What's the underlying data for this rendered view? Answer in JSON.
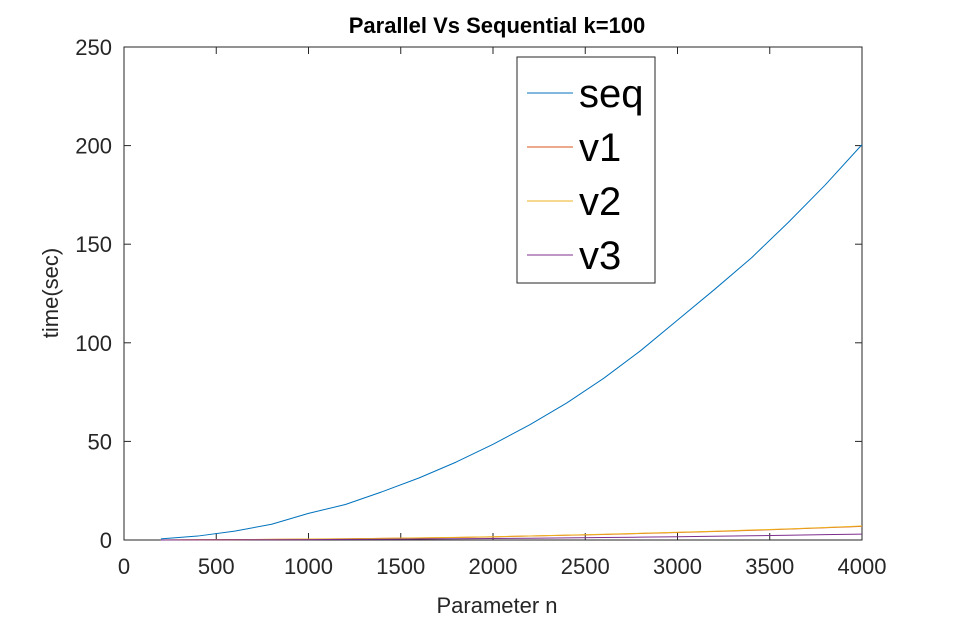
{
  "chart_data": {
    "type": "line",
    "title": "Parallel Vs Sequential k=100",
    "xlabel": "Parameter n",
    "ylabel": "time(sec)",
    "xlim": [
      0,
      4000
    ],
    "ylim": [
      0,
      250
    ],
    "xticks": [
      0,
      500,
      1000,
      1500,
      2000,
      2500,
      3000,
      3500,
      4000
    ],
    "yticks": [
      0,
      50,
      100,
      150,
      200,
      250
    ],
    "grid": false,
    "legend_position": "top-right",
    "series": [
      {
        "name": "seq",
        "color": "#0072BD",
        "x": [
          200,
          400,
          600,
          800,
          1000,
          1200,
          1400,
          1600,
          1800,
          2000,
          2200,
          2400,
          2600,
          2800,
          3000,
          3200,
          3400,
          3600,
          3800,
          4000
        ],
        "y": [
          0.6,
          2.0,
          4.5,
          8.0,
          13.5,
          18.0,
          24.5,
          31.5,
          39.5,
          48.5,
          58.5,
          69.5,
          82.0,
          96.0,
          111.5,
          127.0,
          143.0,
          161.0,
          180.0,
          200.5
        ]
      },
      {
        "name": "v1",
        "color": "#D95319",
        "x": [
          200,
          400,
          600,
          800,
          1000,
          1200,
          1400,
          1600,
          1800,
          2000,
          2200,
          2400,
          2600,
          2800,
          3000,
          3200,
          3400,
          3600,
          3800,
          4000
        ],
        "y": [
          0.02,
          0.1,
          0.2,
          0.3,
          0.45,
          0.6,
          0.8,
          1.0,
          1.3,
          1.6,
          2.0,
          2.4,
          2.8,
          3.3,
          3.8,
          4.3,
          4.9,
          5.5,
          6.2,
          6.9
        ]
      },
      {
        "name": "v2",
        "color": "#EDB120",
        "x": [
          200,
          400,
          600,
          800,
          1000,
          1200,
          1400,
          1600,
          1800,
          2000,
          2200,
          2400,
          2600,
          2800,
          3000,
          3200,
          3400,
          3600,
          3800,
          4000
        ],
        "y": [
          0.03,
          0.11,
          0.22,
          0.33,
          0.48,
          0.65,
          0.85,
          1.07,
          1.35,
          1.67,
          2.05,
          2.45,
          2.9,
          3.4,
          3.9,
          4.45,
          5.05,
          5.65,
          6.35,
          7.1
        ]
      },
      {
        "name": "v3",
        "color": "#7E2F8E",
        "x": [
          200,
          400,
          600,
          800,
          1000,
          1200,
          1400,
          1600,
          1800,
          2000,
          2200,
          2400,
          2600,
          2800,
          3000,
          3200,
          3400,
          3600,
          3800,
          4000
        ],
        "y": [
          0.01,
          0.05,
          0.1,
          0.15,
          0.22,
          0.3,
          0.4,
          0.5,
          0.62,
          0.75,
          0.9,
          1.07,
          1.25,
          1.45,
          1.67,
          1.9,
          2.15,
          2.42,
          2.7,
          3.0
        ]
      }
    ]
  }
}
